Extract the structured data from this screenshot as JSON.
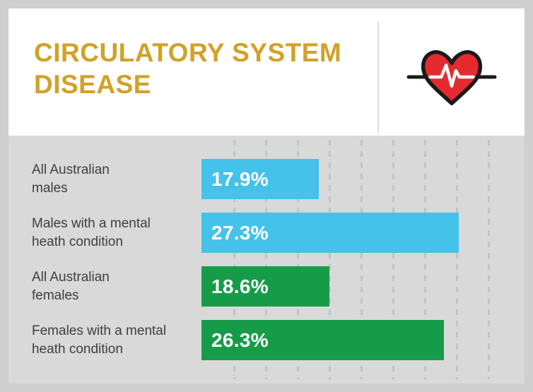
{
  "header": {
    "title": "CIRCULATORY SYSTEM DISEASE",
    "title_display": "CIRCULATORY SYSTEM\nDISEASE",
    "icon": "heart-with-pulse-icon"
  },
  "colors": {
    "title_gold": "#d1a128",
    "males_bar_blue": "#45c2ea",
    "females_bar_green": "#169c49",
    "heart_red": "#e52b30",
    "heart_outline": "#1a1a1a",
    "pulse_line": "#ffffff",
    "chart_background": "#d9d9d9",
    "frame_background": "#cfcfcf",
    "card_background": "#ffffff",
    "label_text": "#3e3e3e",
    "bar_value_text": "#ffffff"
  },
  "chart_data": {
    "type": "bar",
    "orientation": "horizontal",
    "title": "CIRCULATORY SYSTEM DISEASE",
    "categories": [
      "All Australian males",
      "Males with a mental heath condition",
      "All Australian females",
      "Females with a mental heath condition"
    ],
    "categories_display": [
      "All Australian\nmales",
      "Males with a mental\nheath condition",
      "All Australian\nfemales",
      "Females with a mental\nheath condition"
    ],
    "values": [
      17.9,
      27.3,
      18.6,
      26.3
    ],
    "value_labels": [
      "17.9%",
      "27.3%",
      "18.6%",
      "26.3%"
    ],
    "unit": "%",
    "bar_colors": [
      "#45c2ea",
      "#45c2ea",
      "#169c49",
      "#169c49"
    ],
    "groups": [
      {
        "name": "Males",
        "color": "#45c2ea"
      },
      {
        "name": "Females",
        "color": "#169c49"
      }
    ],
    "xlim": [
      10,
      30
    ],
    "grid": "vertical-dashed",
    "legend": "none",
    "data_labels": "inside-start"
  }
}
